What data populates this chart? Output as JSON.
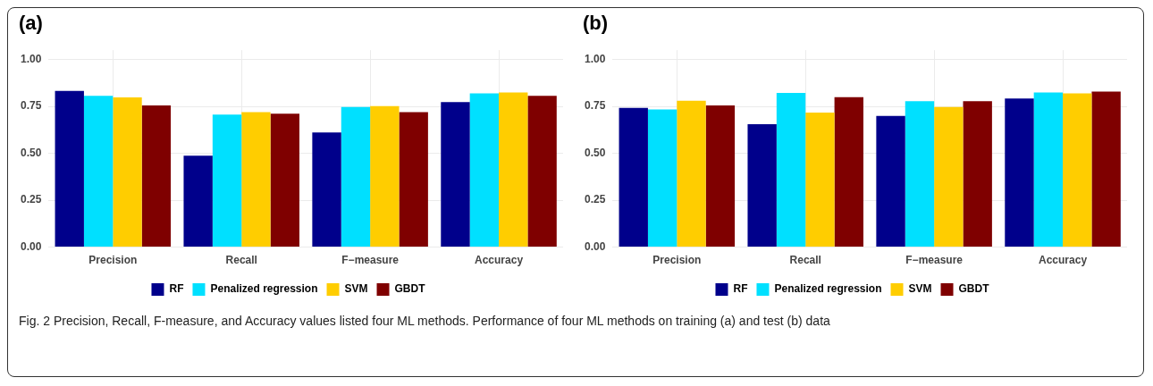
{
  "chart_data": [
    {
      "type": "bar",
      "title": "(a)",
      "categories": [
        "Precision",
        "Recall",
        "F−measure",
        "Accuracy"
      ],
      "series": [
        {
          "name": "RF",
          "color": "#00008b",
          "values": [
            0.833,
            0.488,
            0.612,
            0.773
          ]
        },
        {
          "name": "Penalized regression",
          "color": "#00e0ff",
          "values": [
            0.807,
            0.707,
            0.747,
            0.82
          ]
        },
        {
          "name": "SVM",
          "color": "#ffcd00",
          "values": [
            0.798,
            0.72,
            0.752,
            0.825
          ]
        },
        {
          "name": "GBDT",
          "color": "#7f0000",
          "values": [
            0.755,
            0.712,
            0.72,
            0.807
          ]
        }
      ],
      "ylim": [
        0,
        1.05
      ],
      "yticks": [
        {
          "value": 0,
          "label": "0.00"
        },
        {
          "value": 0.25,
          "label": "0.25"
        },
        {
          "value": 0.5,
          "label": "0.50"
        },
        {
          "value": 0.75,
          "label": "0.75"
        },
        {
          "value": 1,
          "label": "1.00"
        }
      ],
      "grid": true,
      "legend": "bottom"
    },
    {
      "type": "bar",
      "title": "(b)",
      "categories": [
        "Precision",
        "Recall",
        "F−measure",
        "Accuracy"
      ],
      "series": [
        {
          "name": "RF",
          "color": "#00008b",
          "values": [
            0.742,
            0.656,
            0.7,
            0.792
          ]
        },
        {
          "name": "Penalized regression",
          "color": "#00e0ff",
          "values": [
            0.734,
            0.822,
            0.778,
            0.825
          ]
        },
        {
          "name": "SVM",
          "color": "#ffcd00",
          "values": [
            0.781,
            0.717,
            0.747,
            0.82
          ]
        },
        {
          "name": "GBDT",
          "color": "#7f0000",
          "values": [
            0.756,
            0.8,
            0.778,
            0.83
          ]
        }
      ],
      "ylim": [
        0,
        1.05
      ],
      "yticks": [
        {
          "value": 0,
          "label": "0.00"
        },
        {
          "value": 0.25,
          "label": "0.25"
        },
        {
          "value": 0.5,
          "label": "0.50"
        },
        {
          "value": 0.75,
          "label": "0.75"
        },
        {
          "value": 1,
          "label": "1.00"
        }
      ],
      "grid": true,
      "legend": "bottom",
      "annotations": [
        "Fig. 2 Precision, Recall, F-measure, and Accuracy values listed four ML methods. Performance of four ML methods on training (a) and test (b) data"
      ]
    }
  ]
}
